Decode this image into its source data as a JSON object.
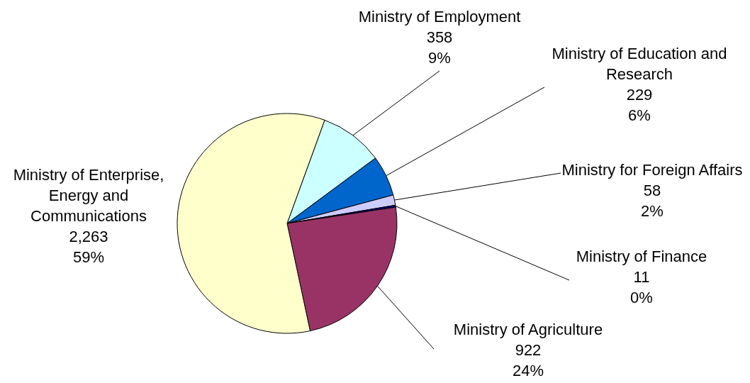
{
  "chart_data": {
    "type": "pie",
    "categories": [
      "Ministry of Employment",
      "Ministry of Education and Research",
      "Ministry for Foreign Affairs",
      "Ministry of Finance",
      "Ministry of Agriculture",
      "Ministry of Enterprise, Energy and Communications"
    ],
    "values": [
      358,
      229,
      58,
      11,
      922,
      2263
    ],
    "colors": [
      "#ccffff",
      "#0066cc",
      "#ccccff",
      "#000080",
      "#993366",
      "#ffffcc"
    ],
    "value_labels": [
      "358\n9%",
      "229\n6%",
      "58\n2%",
      "11\n0%",
      "922\n24%",
      "2,263\n59%"
    ]
  }
}
